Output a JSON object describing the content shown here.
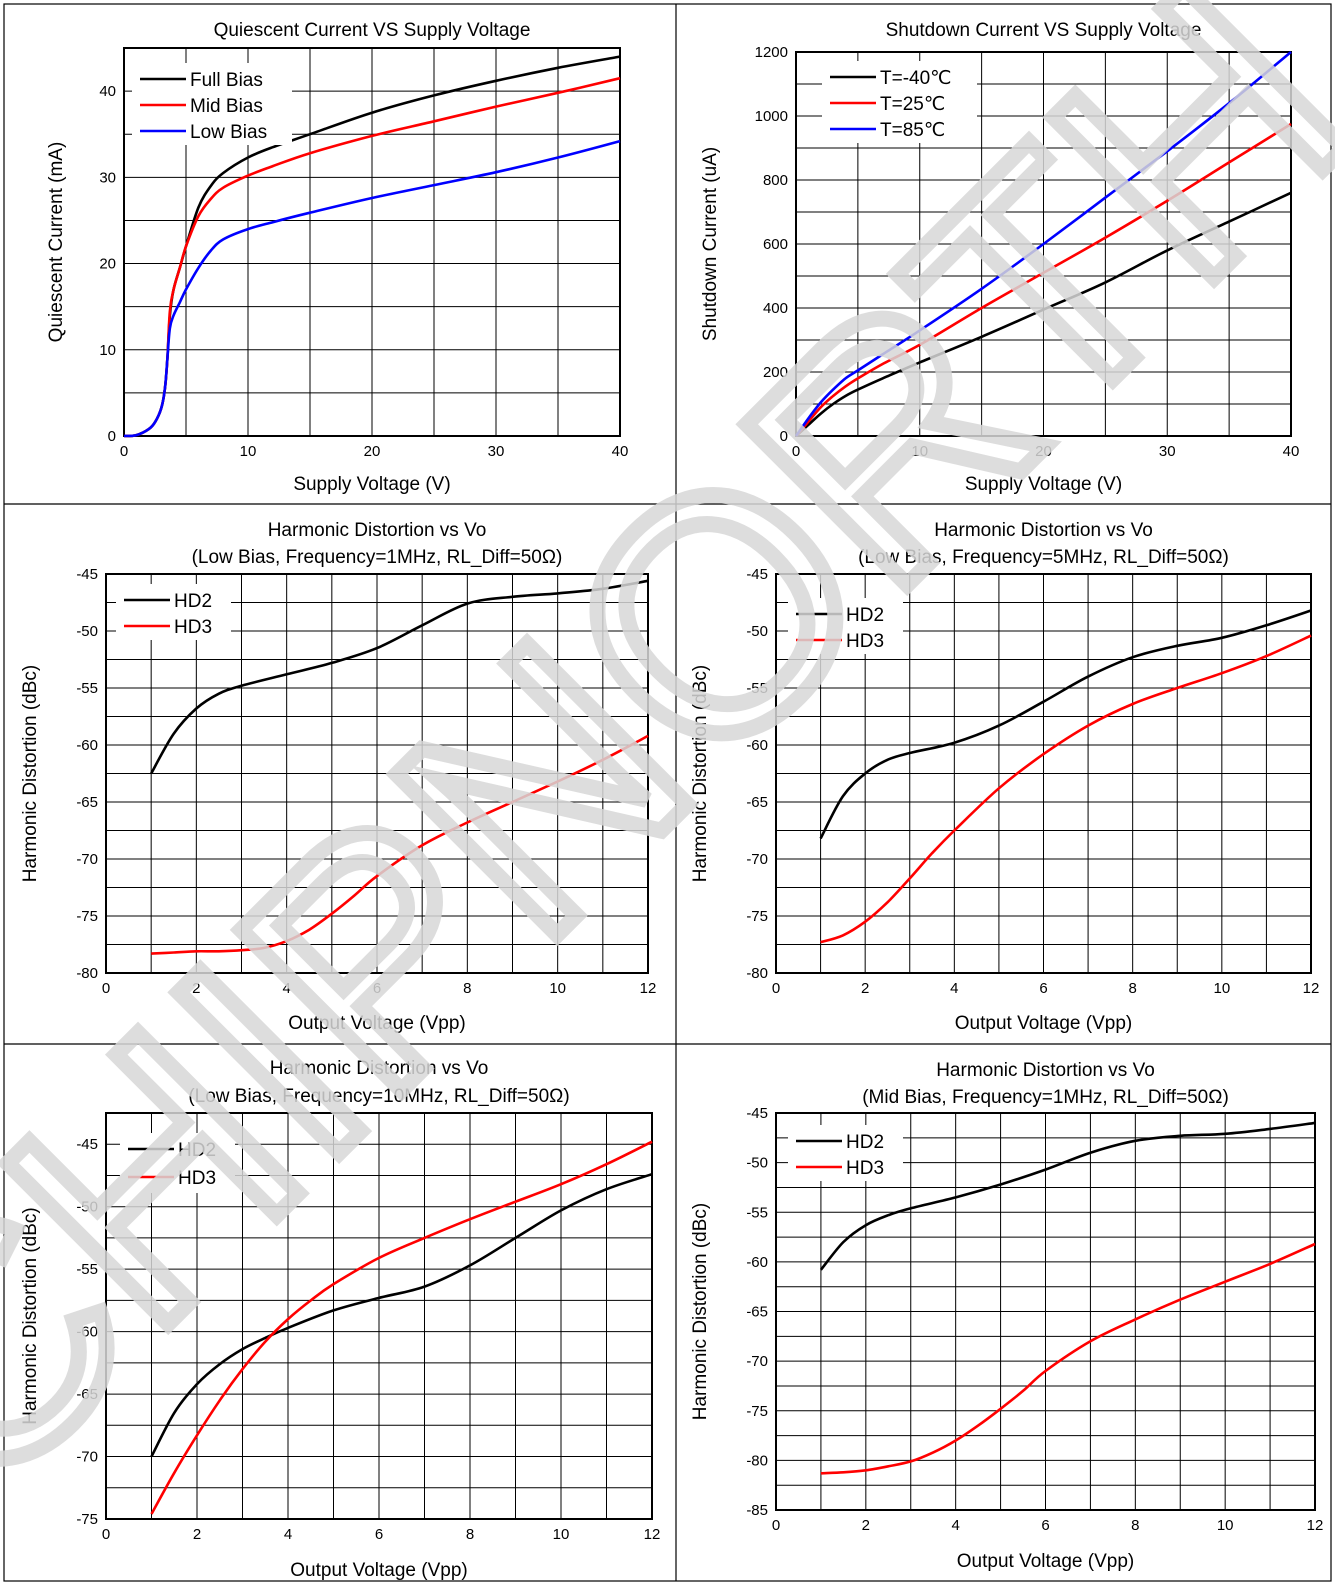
{
  "watermark": "CHIPNORTH",
  "colors": {
    "black": "#000000",
    "red": "#ff0000",
    "blue": "#0000ff",
    "grid": "#000000",
    "border": "#000000",
    "watermark": "#dcdcdc"
  },
  "chart_data": [
    {
      "type": "line",
      "title": [
        "Quiescent Current VS Supply Voltage"
      ],
      "xlabel": "Supply Voltage (V)",
      "ylabel": "Quiescent Current (mA)",
      "xlim": [
        0,
        40
      ],
      "ylim": [
        0,
        45
      ],
      "xticks": [
        0,
        10,
        20,
        30,
        40
      ],
      "yticks": [
        0,
        10,
        20,
        30,
        40
      ],
      "xgrid": [
        5,
        10,
        15,
        20,
        25,
        30,
        35
      ],
      "ygrid": [
        5,
        10,
        15,
        20,
        25,
        30,
        35,
        40
      ],
      "legend": "top-left",
      "series": [
        {
          "name": "Full Bias",
          "color": "#000000",
          "x": [
            0,
            1,
            2,
            2.5,
            3,
            3.3,
            3.5,
            3.7,
            4,
            4.5,
            5,
            6,
            7,
            8,
            10,
            12,
            15,
            20,
            25,
            30,
            35,
            40
          ],
          "y": [
            0,
            0.1,
            0.8,
            1.6,
            3.2,
            5.5,
            9,
            14,
            17,
            19.5,
            22,
            26.5,
            29,
            30.5,
            32.3,
            33.5,
            35,
            37.5,
            39.5,
            41.2,
            42.7,
            44
          ]
        },
        {
          "name": "Mid Bias",
          "color": "#ff0000",
          "x": [
            0,
            1,
            2,
            2.5,
            3,
            3.3,
            3.5,
            3.7,
            4,
            4.5,
            5,
            6,
            7,
            8,
            10,
            12,
            15,
            20,
            25,
            30,
            35,
            40
          ],
          "y": [
            0,
            0.1,
            0.8,
            1.6,
            3.2,
            5.5,
            9,
            14.5,
            17,
            19.5,
            22,
            25.5,
            27.5,
            28.8,
            30.2,
            31.3,
            32.8,
            34.8,
            36.5,
            38.2,
            39.8,
            41.5
          ]
        },
        {
          "name": "Low Bias",
          "color": "#0000ff",
          "x": [
            0,
            1,
            2,
            2.5,
            3,
            3.3,
            3.5,
            3.7,
            4,
            4.5,
            5,
            6,
            7,
            8,
            10,
            12,
            15,
            20,
            25,
            30,
            35,
            40
          ],
          "y": [
            0,
            0.1,
            0.8,
            1.6,
            3.2,
            5.5,
            9,
            12.5,
            14,
            15.5,
            17,
            19.5,
            21.5,
            22.8,
            24,
            24.8,
            25.9,
            27.6,
            29.1,
            30.6,
            32.3,
            34.2
          ]
        }
      ]
    },
    {
      "type": "line",
      "title": [
        "Shutdown Current VS Supply Voltage"
      ],
      "xlabel": "Supply Voltage (V)",
      "ylabel": "Shutdown Current (uA)",
      "xlim": [
        0,
        40
      ],
      "ylim": [
        0,
        1200
      ],
      "xticks": [
        0,
        10,
        20,
        30,
        40
      ],
      "yticks": [
        0,
        200,
        400,
        600,
        800,
        1000,
        1200
      ],
      "xgrid": [
        5,
        10,
        15,
        20,
        25,
        30,
        35
      ],
      "ygrid": [
        100,
        200,
        300,
        400,
        500,
        600,
        700,
        800,
        900,
        1000,
        1100
      ],
      "legend": "top-left",
      "series": [
        {
          "name": "T=-40℃",
          "color": "#000000",
          "x": [
            0,
            1,
            2,
            3,
            4,
            5,
            7,
            10,
            15,
            20,
            25,
            30,
            35,
            40
          ],
          "y": [
            0,
            35,
            70,
            100,
            125,
            145,
            180,
            230,
            310,
            395,
            480,
            580,
            670,
            760
          ]
        },
        {
          "name": "T=25℃",
          "color": "#ff0000",
          "x": [
            0,
            1,
            2,
            3,
            4,
            5,
            7,
            10,
            15,
            20,
            25,
            30,
            35,
            40
          ],
          "y": [
            0,
            45,
            90,
            125,
            155,
            180,
            225,
            285,
            400,
            510,
            620,
            735,
            855,
            975
          ]
        },
        {
          "name": "T=85℃",
          "color": "#0000ff",
          "x": [
            0,
            1,
            2,
            3,
            4,
            5,
            7,
            10,
            15,
            20,
            25,
            30,
            35,
            40
          ],
          "y": [
            0,
            55,
            105,
            145,
            180,
            205,
            255,
            330,
            460,
            600,
            745,
            890,
            1040,
            1200
          ]
        }
      ]
    },
    {
      "type": "line",
      "title": [
        "Harmonic Distortion vs Vo",
        "(Low Bias, Frequency=1MHz, RL_Diff=50Ω)"
      ],
      "xlabel": "Output Voltage (Vpp)",
      "ylabel": "Harmonic Distortion (dBc)",
      "xlim": [
        0,
        12
      ],
      "ylim": [
        -80,
        -45
      ],
      "xticks": [
        0,
        2,
        4,
        6,
        8,
        10,
        12
      ],
      "yticks": [
        -45,
        -50,
        -55,
        -60,
        -65,
        -70,
        -75,
        -80
      ],
      "xgrid": [
        1,
        2,
        3,
        4,
        5,
        6,
        7,
        8,
        9,
        10,
        11
      ],
      "ygrid": [
        -47.5,
        -50,
        -52.5,
        -55,
        -57.5,
        -60,
        -62.5,
        -65,
        -67.5,
        -70,
        -72.5,
        -75,
        -77.5
      ],
      "legend": "top-left",
      "series": [
        {
          "name": "HD2",
          "color": "#000000",
          "x": [
            1,
            1.5,
            2,
            2.5,
            3,
            4,
            5,
            6,
            7,
            8,
            9,
            10,
            11,
            12
          ],
          "y": [
            -62.5,
            -59,
            -56.8,
            -55.5,
            -54.8,
            -53.8,
            -52.8,
            -51.5,
            -49.5,
            -47.6,
            -47,
            -46.7,
            -46.3,
            -45.6
          ]
        },
        {
          "name": "HD3",
          "color": "#ff0000",
          "x": [
            1,
            1.5,
            2,
            2.5,
            3,
            3.5,
            4,
            4.5,
            5,
            5.5,
            6,
            7,
            8,
            9,
            10,
            11,
            12
          ],
          "y": [
            -78.3,
            -78.2,
            -78.1,
            -78.1,
            -78,
            -77.8,
            -77.2,
            -76.2,
            -74.8,
            -73.2,
            -71.5,
            -68.8,
            -66.8,
            -65,
            -63.2,
            -61.3,
            -59.2
          ]
        }
      ]
    },
    {
      "type": "line",
      "title": [
        "Harmonic Distortion vs Vo",
        "(Low Bias, Frequency=5MHz, RL_Diff=50Ω)"
      ],
      "xlabel": "Output Voltage (Vpp)",
      "ylabel": "Harmonic Distortion (dBc)",
      "xlim": [
        0,
        12
      ],
      "ylim": [
        -80,
        -45
      ],
      "xticks": [
        0,
        2,
        4,
        6,
        8,
        10,
        12
      ],
      "yticks": [
        -45,
        -50,
        -55,
        -60,
        -65,
        -70,
        -75,
        -80
      ],
      "xgrid": [
        1,
        2,
        3,
        4,
        5,
        6,
        7,
        8,
        9,
        10,
        11
      ],
      "ygrid": [
        -47.5,
        -50,
        -52.5,
        -55,
        -57.5,
        -60,
        -62.5,
        -65,
        -67.5,
        -70,
        -72.5,
        -75,
        -77.5
      ],
      "legend": "top-left",
      "series": [
        {
          "name": "HD2",
          "color": "#000000",
          "x": [
            1,
            1.5,
            2,
            2.5,
            3,
            4,
            5,
            6,
            7,
            8,
            9,
            10,
            11,
            12
          ],
          "y": [
            -68.2,
            -64.5,
            -62.5,
            -61.3,
            -60.7,
            -59.8,
            -58.3,
            -56.2,
            -54,
            -52.3,
            -51.3,
            -50.6,
            -49.5,
            -48.2
          ]
        },
        {
          "name": "HD3",
          "color": "#ff0000",
          "x": [
            1,
            1.5,
            2,
            2.5,
            3,
            3.5,
            4,
            5,
            6,
            7,
            8,
            9,
            10,
            11,
            12
          ],
          "y": [
            -77.3,
            -76.7,
            -75.5,
            -73.8,
            -71.7,
            -69.5,
            -67.5,
            -63.8,
            -60.8,
            -58.3,
            -56.4,
            -55,
            -53.7,
            -52.2,
            -50.4
          ]
        }
      ]
    },
    {
      "type": "line",
      "title": [
        "Harmonic Distortion vs Vo",
        "(Low Bias, Frequency=10MHz, RL_Diff=50Ω)"
      ],
      "xlabel": "Output Voltage (Vpp)",
      "ylabel": "Harmonic Distortion (dBc)",
      "xlim": [
        0,
        12
      ],
      "ylim": [
        -75,
        -42.5
      ],
      "xticks": [
        0,
        2,
        4,
        6,
        8,
        10,
        12
      ],
      "yticks": [
        -45,
        -50,
        -55,
        -60,
        -65,
        -70,
        -75
      ],
      "xgrid": [
        1,
        2,
        3,
        4,
        5,
        6,
        7,
        8,
        9,
        10,
        11
      ],
      "ygrid": [
        -45,
        -47.5,
        -50,
        -52.5,
        -55,
        -57.5,
        -60,
        -62.5,
        -65,
        -67.5,
        -70,
        -72.5
      ],
      "legend": "top-left",
      "series": [
        {
          "name": "HD2",
          "color": "#000000",
          "x": [
            1,
            1.5,
            2,
            2.5,
            3,
            3.5,
            4,
            5,
            6,
            7,
            8,
            9,
            10,
            11,
            12
          ],
          "y": [
            -70,
            -66.5,
            -64.2,
            -62.6,
            -61.4,
            -60.5,
            -59.7,
            -58.3,
            -57.3,
            -56.4,
            -54.7,
            -52.5,
            -50.3,
            -48.6,
            -47.4
          ]
        },
        {
          "name": "HD3",
          "color": "#ff0000",
          "x": [
            1,
            1.5,
            2,
            2.5,
            3,
            3.5,
            4,
            4.5,
            5,
            6,
            7,
            8,
            9,
            10,
            11,
            12
          ],
          "y": [
            -74.6,
            -71.3,
            -68.3,
            -65.5,
            -63,
            -60.8,
            -59,
            -57.5,
            -56.2,
            -54.1,
            -52.5,
            -51,
            -49.6,
            -48.2,
            -46.6,
            -44.8
          ]
        }
      ]
    },
    {
      "type": "line",
      "title": [
        "Harmonic Distortion vs Vo",
        "(Mid Bias, Frequency=1MHz, RL_Diff=50Ω)"
      ],
      "xlabel": "Output Voltage (Vpp)",
      "ylabel": "Harmonic Distortion (dBc)",
      "xlim": [
        0,
        12
      ],
      "ylim": [
        -85,
        -45
      ],
      "xticks": [
        0,
        2,
        4,
        6,
        8,
        10,
        12
      ],
      "yticks": [
        -45,
        -50,
        -55,
        -60,
        -65,
        -70,
        -75,
        -80,
        -85
      ],
      "xgrid": [
        1,
        2,
        3,
        4,
        5,
        6,
        7,
        8,
        9,
        10,
        11
      ],
      "ygrid": [
        -47.5,
        -50,
        -52.5,
        -55,
        -57.5,
        -60,
        -62.5,
        -65,
        -67.5,
        -70,
        -72.5,
        -75,
        -77.5,
        -80,
        -82.5
      ],
      "legend": "top-left",
      "series": [
        {
          "name": "HD2",
          "color": "#000000",
          "x": [
            1,
            1.5,
            2,
            2.5,
            3,
            4,
            5,
            6,
            7,
            8,
            9,
            10,
            11,
            12
          ],
          "y": [
            -60.8,
            -58,
            -56.3,
            -55.3,
            -54.6,
            -53.5,
            -52.2,
            -50.7,
            -49,
            -47.8,
            -47.3,
            -47.1,
            -46.6,
            -46
          ]
        },
        {
          "name": "HD3",
          "color": "#ff0000",
          "x": [
            1,
            1.5,
            2,
            2.5,
            3,
            3.5,
            4,
            4.5,
            5,
            5.5,
            6,
            7,
            8,
            9,
            10,
            11,
            12
          ],
          "y": [
            -81.3,
            -81.2,
            -81,
            -80.6,
            -80.1,
            -79.2,
            -78,
            -76.5,
            -74.8,
            -73,
            -71,
            -68,
            -65.8,
            -63.8,
            -62,
            -60.2,
            -58.2
          ]
        }
      ]
    }
  ]
}
